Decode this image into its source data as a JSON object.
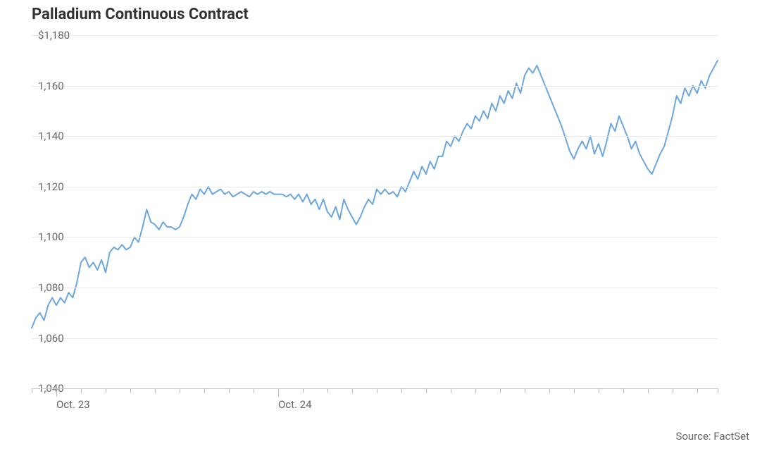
{
  "chart": {
    "type": "line",
    "title": "Palladium Continuous Contract",
    "source_label": "Source: FactSet",
    "background_color": "#ffffff",
    "grid_color": "#e9e9e9",
    "axis_color": "#cccccc",
    "tick_color": "#bbbbbb",
    "label_color": "#666666",
    "title_color": "#333333",
    "title_fontsize": 22,
    "label_fontsize": 15,
    "line_color": "#6ca6e0",
    "line_width": 2,
    "ylim": [
      1032,
      1180
    ],
    "y_ticks": [
      {
        "v": 1180,
        "label": "$1,180"
      },
      {
        "v": 1160,
        "label": "1,160"
      },
      {
        "v": 1140,
        "label": "1,140"
      },
      {
        "v": 1120,
        "label": "1,120"
      },
      {
        "v": 1100,
        "label": "1,100"
      },
      {
        "v": 1080,
        "label": "1,080"
      },
      {
        "v": 1060,
        "label": "1,060"
      },
      {
        "v": 1040,
        "label": "1,040"
      }
    ],
    "x_count": 168,
    "x_minor_tick_every": 6,
    "x_major_ticks": [
      {
        "i": 6,
        "label": "Oct. 23"
      },
      {
        "i": 60,
        "label": "Oct. 24"
      }
    ],
    "series": [
      1064,
      1068,
      1070,
      1067,
      1073,
      1076,
      1073,
      1076,
      1074,
      1078,
      1076,
      1082,
      1090,
      1092,
      1088,
      1090,
      1087,
      1091,
      1086,
      1094,
      1096,
      1095,
      1097,
      1095,
      1096,
      1100,
      1098,
      1104,
      1111,
      1106,
      1105,
      1103,
      1106,
      1104,
      1104,
      1103,
      1104,
      1108,
      1113,
      1117,
      1115,
      1119,
      1117,
      1120,
      1117,
      1118,
      1119,
      1117,
      1118,
      1116,
      1117,
      1118,
      1117,
      1116,
      1118,
      1117,
      1118,
      1117,
      1118,
      1117,
      1117,
      1117,
      1116,
      1117,
      1115,
      1117,
      1114,
      1117,
      1113,
      1115,
      1111,
      1115,
      1110,
      1108,
      1112,
      1107,
      1115,
      1111,
      1108,
      1105,
      1108,
      1112,
      1115,
      1113,
      1119,
      1117,
      1119,
      1117,
      1118,
      1116,
      1120,
      1118,
      1122,
      1126,
      1123,
      1128,
      1125,
      1130,
      1127,
      1132,
      1132,
      1138,
      1136,
      1140,
      1138,
      1142,
      1145,
      1143,
      1148,
      1146,
      1150,
      1147,
      1153,
      1150,
      1156,
      1153,
      1158,
      1155,
      1161,
      1157,
      1164,
      1167,
      1165,
      1168,
      1164,
      1160,
      1156,
      1152,
      1148,
      1144,
      1139,
      1134,
      1131,
      1135,
      1138,
      1135,
      1140,
      1133,
      1137,
      1132,
      1138,
      1145,
      1142,
      1148,
      1144,
      1140,
      1135,
      1138,
      1133,
      1130,
      1127,
      1125,
      1129,
      1133,
      1136,
      1142,
      1148,
      1156,
      1153,
      1159,
      1156,
      1160,
      1157,
      1162,
      1159,
      1164,
      1167,
      1170
    ]
  }
}
